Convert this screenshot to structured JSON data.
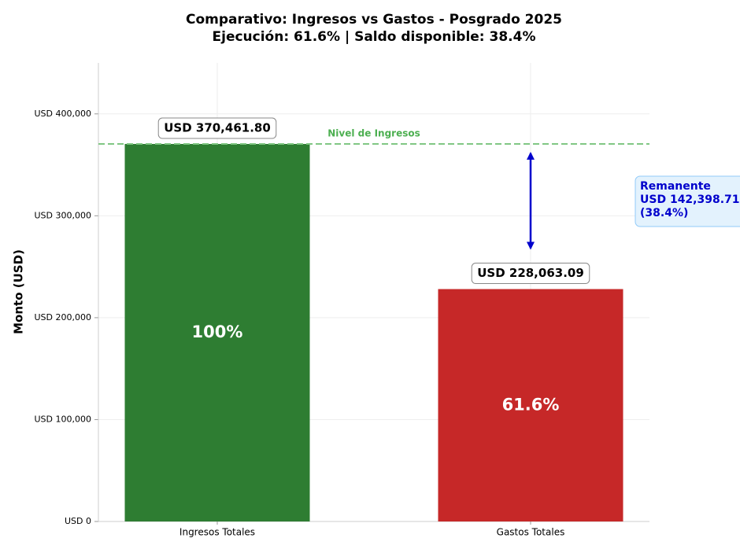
{
  "chart_data": {
    "type": "bar",
    "title": "Comparativo: Ingresos vs Gastos - Posgrado 2025",
    "subtitle": "Ejecución: 61.6% | Saldo disponible: 38.4%",
    "y_label": "Monto (USD)",
    "categories": [
      "Ingresos Totales",
      "Gastos Totales"
    ],
    "values": [
      370461.8,
      228063.09
    ],
    "value_labels": [
      "USD 370,461.80",
      "USD 228,063.09"
    ],
    "inner_labels": [
      "100%",
      "61.6%"
    ],
    "colors": [
      "#2e7d32",
      "#c62828"
    ],
    "ylim": [
      0,
      450000
    ],
    "yticks": [
      {
        "value": 0,
        "label": "USD 0"
      },
      {
        "value": 100000,
        "label": "USD 100,000"
      },
      {
        "value": 200000,
        "label": "USD 200,000"
      },
      {
        "value": 300000,
        "label": "USD 300,000"
      },
      {
        "value": 400000,
        "label": "USD 400,000"
      }
    ],
    "grid": true,
    "reference_line": {
      "value": 370461.8,
      "label": "Nivel de Ingresos",
      "color": "#81c784"
    },
    "remainder": {
      "value": 142398.71,
      "lines": [
        "Remanente",
        "USD 142,398.71",
        "(38.4%)"
      ],
      "color": "#0000cc"
    }
  }
}
